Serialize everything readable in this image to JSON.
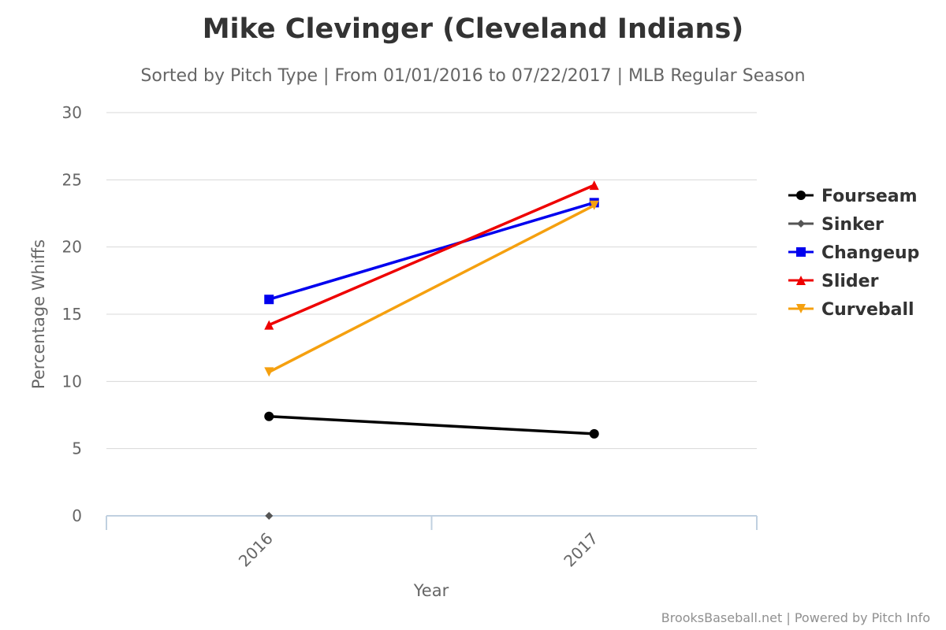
{
  "chart_data": {
    "type": "line",
    "title": "Mike Clevinger (Cleveland Indians)",
    "subtitle": "Sorted by Pitch Type | From 01/01/2016 to 07/22/2017 | MLB Regular Season",
    "xlabel": "Year",
    "ylabel": "Percentage Whiffs",
    "categories": [
      "2016",
      "2017"
    ],
    "ylim": [
      0,
      30
    ],
    "yticks": [
      0,
      5,
      10,
      15,
      20,
      25,
      30
    ],
    "grid": true,
    "legend_position": "right",
    "series": [
      {
        "name": "Fourseam",
        "color": "#000000",
        "marker": "circle",
        "values": [
          7.4,
          6.1
        ]
      },
      {
        "name": "Sinker",
        "color": "#555555",
        "marker": "diamond",
        "values": [
          0,
          null
        ]
      },
      {
        "name": "Changeup",
        "color": "#0000ee",
        "marker": "square",
        "values": [
          16.1,
          23.3
        ]
      },
      {
        "name": "Slider",
        "color": "#ee0000",
        "marker": "triangle",
        "values": [
          14.2,
          24.6
        ]
      },
      {
        "name": "Curveball",
        "color": "#f5a00f",
        "marker": "triangle-down",
        "values": [
          10.7,
          23.1
        ]
      }
    ]
  },
  "credits": "BrooksBaseball.net | Powered by Pitch Info"
}
